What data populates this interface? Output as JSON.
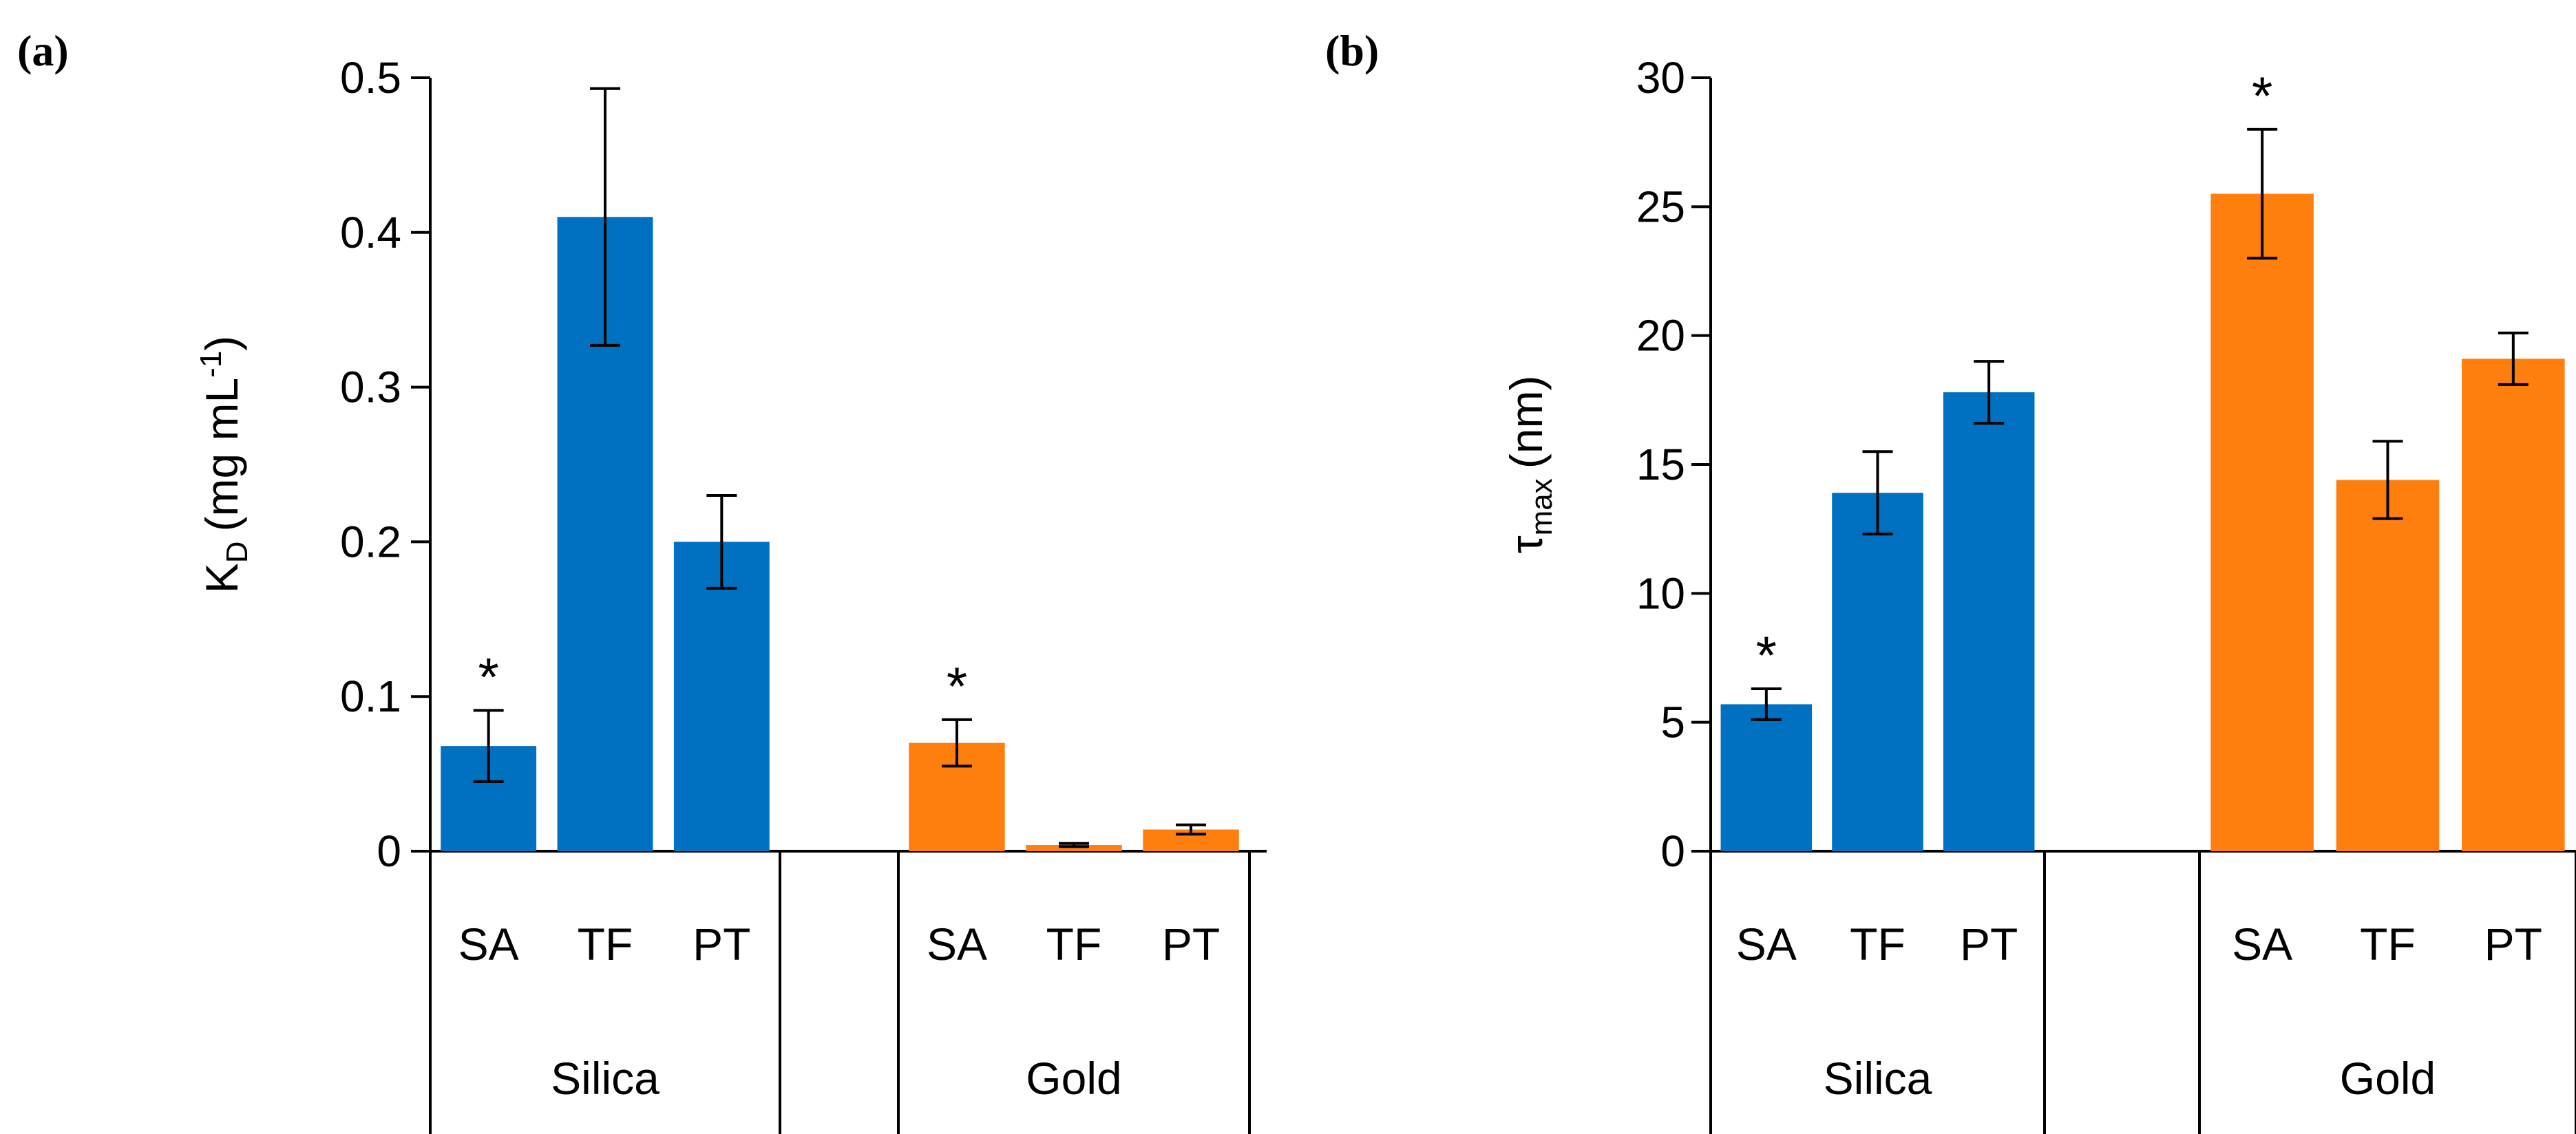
{
  "chart_data": [
    {
      "type": "bar",
      "panel_label": "(a)",
      "ylabel": {
        "main": "K",
        "main_sub": "D",
        "unit_open": "(mg mL",
        "unit_sup": "-1",
        "unit_close": ")"
      },
      "ylim": [
        0,
        0.5
      ],
      "yticks": [
        "0",
        "0.1",
        "0.2",
        "0.3",
        "0.4",
        "0.5"
      ],
      "ytick_values": [
        0,
        0.1,
        0.2,
        0.3,
        0.4,
        0.5
      ],
      "groups": [
        {
          "name": "Silica",
          "color": "#0070C0",
          "categories": [
            "SA",
            "TF",
            "PT"
          ],
          "values": [
            0.068,
            0.41,
            0.2
          ],
          "errors": [
            0.023,
            0.083,
            0.03
          ],
          "significance": [
            "*",
            "",
            ""
          ]
        },
        {
          "name": "Gold",
          "color": "#FF7F0E",
          "categories": [
            "SA",
            "TF",
            "PT"
          ],
          "values": [
            0.07,
            0.004,
            0.014
          ],
          "errors": [
            0.015,
            0.001,
            0.003
          ],
          "significance": [
            "*",
            "",
            ""
          ]
        }
      ]
    },
    {
      "type": "bar",
      "panel_label": "(b)",
      "ylabel": {
        "main": "τ",
        "main_sub": "max",
        "unit_open": "(nm)",
        "unit_sup": "",
        "unit_close": ""
      },
      "ylim": [
        0,
        30
      ],
      "yticks": [
        "0",
        "5",
        "10",
        "15",
        "20",
        "25",
        "30"
      ],
      "ytick_values": [
        0,
        5,
        10,
        15,
        20,
        25,
        30
      ],
      "groups": [
        {
          "name": "Silica",
          "color": "#0070C0",
          "categories": [
            "SA",
            "TF",
            "PT"
          ],
          "values": [
            5.7,
            13.9,
            17.8
          ],
          "errors": [
            0.6,
            1.6,
            1.2
          ],
          "significance": [
            "*",
            "",
            ""
          ]
        },
        {
          "name": "Gold",
          "color": "#FF7F0E",
          "categories": [
            "SA",
            "TF",
            "PT"
          ],
          "values": [
            25.5,
            14.4,
            19.1
          ],
          "errors": [
            2.5,
            1.5,
            1.0
          ],
          "significance": [
            "*",
            "",
            ""
          ]
        }
      ]
    }
  ]
}
